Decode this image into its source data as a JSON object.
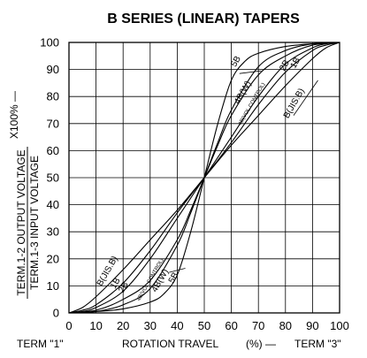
{
  "chart_data": {
    "type": "line",
    "title": "B SERIES (LINEAR) TAPERS",
    "x_ticks": [
      "0",
      "10",
      "20",
      "30",
      "40",
      "50",
      "60",
      "70",
      "80",
      "90",
      "100"
    ],
    "y_ticks": [
      "0",
      "10",
      "20",
      "30",
      "40",
      "50",
      "60",
      "70",
      "80",
      "90",
      "100"
    ],
    "xlim": [
      0,
      100
    ],
    "ylim": [
      0,
      100
    ],
    "grid": true,
    "xlabel": {
      "left": "TERM \"1\"",
      "center": "ROTATION TRAVEL",
      "unit": "(%) —",
      "right": "TERM \"3\""
    },
    "ylabel": {
      "numerator": "TERM.1-2 OUTPUT VOLTAGE",
      "denominator": "TERM.1-3 INPUT VOLTAGE",
      "unit": "X100% —"
    },
    "series": [
      {
        "name": "B(JIS.B)",
        "x": [
          0,
          5,
          10,
          20,
          30,
          40,
          50,
          60,
          70,
          80,
          90,
          95,
          100
        ],
        "y": [
          0,
          2,
          6,
          16,
          27,
          38,
          50,
          62,
          73,
          84,
          94,
          98,
          100
        ]
      },
      {
        "name": "1B",
        "x": [
          0,
          5,
          10,
          20,
          30,
          40,
          50,
          60,
          70,
          80,
          90,
          95,
          100
        ],
        "y": [
          0,
          1,
          3,
          11,
          23,
          37,
          50,
          63,
          77,
          89,
          97,
          99,
          100
        ]
      },
      {
        "name": "2B",
        "x": [
          0,
          5,
          10,
          20,
          30,
          40,
          50,
          60,
          70,
          80,
          90,
          95,
          100
        ],
        "y": [
          0,
          0.5,
          2,
          8,
          20,
          35,
          50,
          65,
          80,
          92,
          98,
          99.5,
          100
        ]
      },
      {
        "name": "4B(VOL.CONTROL)",
        "x": [
          0,
          10,
          20,
          30,
          40,
          45,
          50,
          55,
          60,
          70,
          80,
          90,
          100
        ],
        "y": [
          0,
          1,
          5,
          12,
          27,
          38,
          50,
          62,
          73,
          88,
          95,
          99,
          100
        ]
      },
      {
        "name": "4B(W)",
        "x": [
          0,
          10,
          20,
          30,
          40,
          45,
          50,
          55,
          60,
          70,
          80,
          90,
          100
        ],
        "y": [
          0,
          0.5,
          3,
          9,
          25,
          37,
          50,
          63,
          75,
          91,
          97,
          99.5,
          100
        ]
      },
      {
        "name": "5B",
        "x": [
          0,
          10,
          20,
          30,
          35,
          40,
          45,
          50,
          55,
          60,
          65,
          70,
          80,
          90,
          100
        ],
        "y": [
          0,
          0.5,
          1.5,
          4,
          7,
          14,
          30,
          50,
          70,
          86,
          93,
          96,
          98.5,
          99.5,
          100
        ]
      }
    ],
    "labels": [
      {
        "text": "B(JIS.B)",
        "x": 15,
        "y": 15
      },
      {
        "text": "1B",
        "x": 18,
        "y": 10.5
      },
      {
        "text": "2B",
        "x": 21,
        "y": 9
      },
      {
        "text": "4B(VOL.CONTROL)",
        "x": 30.5,
        "y": 12
      },
      {
        "text": "4B(W)",
        "x": 34.5,
        "y": 11.5
      },
      {
        "text": "5B",
        "x": 39.5,
        "y": 12.5
      },
      {
        "text": "5B",
        "x": 62.5,
        "y": 92.5
      },
      {
        "text": "4B(W)",
        "x": 65,
        "y": 81
      },
      {
        "text": "4B(VOL.CONTROL)",
        "x": 68,
        "y": 77
      },
      {
        "text": "2B",
        "x": 80.5,
        "y": 91
      },
      {
        "text": "1B",
        "x": 84.5,
        "y": 92
      },
      {
        "text": "B(JIS.B)",
        "x": 84,
        "y": 77
      }
    ]
  }
}
